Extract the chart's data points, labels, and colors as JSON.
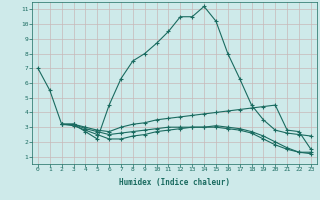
{
  "xlabel": "Humidex (Indice chaleur)",
  "bg_color": "#ceeaea",
  "grid_color": "#c8b8b8",
  "line_color": "#1a6b60",
  "xlim": [
    -0.5,
    23.5
  ],
  "ylim": [
    0.5,
    11.5
  ],
  "xticks": [
    0,
    1,
    2,
    3,
    4,
    5,
    6,
    7,
    8,
    9,
    10,
    11,
    12,
    13,
    14,
    15,
    16,
    17,
    18,
    19,
    20,
    21,
    22,
    23
  ],
  "yticks": [
    1,
    2,
    3,
    4,
    5,
    6,
    7,
    8,
    9,
    10,
    11
  ],
  "line1_x": [
    0,
    1,
    2,
    3,
    4,
    5,
    6,
    7,
    8,
    9,
    10,
    11,
    12,
    13,
    14,
    15,
    16,
    17,
    18,
    19,
    20,
    21,
    22,
    23
  ],
  "line1_y": [
    7.0,
    5.5,
    3.2,
    3.2,
    2.7,
    2.2,
    4.5,
    6.3,
    7.5,
    8.0,
    8.7,
    9.5,
    10.5,
    10.5,
    11.2,
    10.2,
    8.0,
    6.3,
    4.5,
    3.5,
    2.8,
    2.6,
    2.5,
    2.4
  ],
  "line2_x": [
    2,
    3,
    4,
    5,
    6,
    7,
    8,
    9,
    10,
    11,
    12,
    13,
    14,
    15,
    16,
    17,
    18,
    19,
    20,
    21,
    22,
    23
  ],
  "line2_y": [
    3.2,
    3.2,
    3.0,
    2.8,
    2.7,
    3.0,
    3.2,
    3.3,
    3.5,
    3.6,
    3.7,
    3.8,
    3.9,
    4.0,
    4.1,
    4.2,
    4.3,
    4.4,
    4.5,
    2.8,
    2.7,
    1.5
  ],
  "line3_x": [
    2,
    3,
    4,
    5,
    6,
    7,
    8,
    9,
    10,
    11,
    12,
    13,
    14,
    15,
    16,
    17,
    18,
    19,
    20,
    21,
    22,
    23
  ],
  "line3_y": [
    3.2,
    3.2,
    2.9,
    2.7,
    2.5,
    2.6,
    2.7,
    2.8,
    2.9,
    3.0,
    3.0,
    3.0,
    3.0,
    3.0,
    2.9,
    2.8,
    2.6,
    2.2,
    1.8,
    1.5,
    1.3,
    1.3
  ],
  "line4_x": [
    2,
    3,
    4,
    5,
    6,
    7,
    8,
    9,
    10,
    11,
    12,
    13,
    14,
    15,
    16,
    17,
    18,
    19,
    20,
    21,
    22,
    23
  ],
  "line4_y": [
    3.2,
    3.1,
    2.8,
    2.5,
    2.2,
    2.2,
    2.4,
    2.5,
    2.7,
    2.8,
    2.9,
    3.0,
    3.0,
    3.1,
    3.0,
    2.9,
    2.7,
    2.4,
    2.0,
    1.6,
    1.3,
    1.2
  ]
}
